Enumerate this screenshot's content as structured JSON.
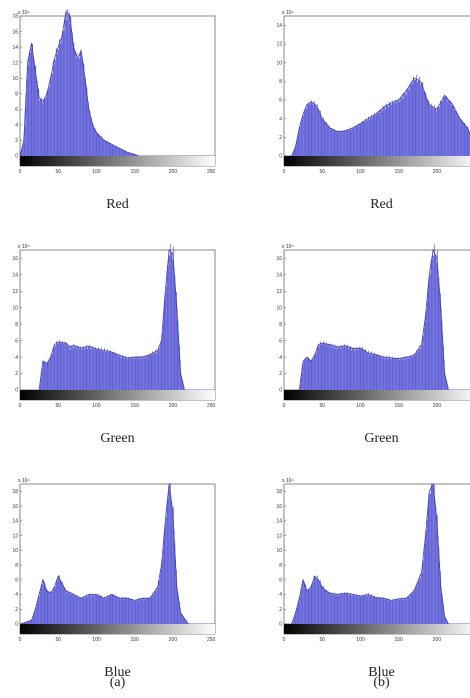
{
  "colors": {
    "bar": "#5b5bd6",
    "bar_edge": "#3c3cb0",
    "frame": "#555555"
  },
  "columns": [
    {
      "label": "(a)",
      "panels": [
        {
          "caption": "Red",
          "chart_data": {
            "type": "area",
            "ylim": [
              0,
              18
            ],
            "y_multiplier": "x 10^4",
            "y_ticks": [
              "0",
              "2",
              "4",
              "6",
              "8",
              "10",
              "12",
              "14",
              "16",
              "18"
            ],
            "x_ticks": [
              "0",
              "50",
              "100",
              "150",
              "200",
              "250"
            ],
            "xlim": [
              0,
              255
            ],
            "x": [
              0,
              5,
              10,
              15,
              20,
              25,
              30,
              35,
              40,
              45,
              50,
              55,
              60,
              65,
              70,
              75,
              80,
              85,
              90,
              95,
              100,
              110,
              120,
              130,
              140,
              150,
              155,
              160,
              255
            ],
            "y": [
              0,
              2,
              12,
              14.5,
              11,
              7.5,
              7,
              8,
              10,
              12.5,
              14,
              15.5,
              18.5,
              18,
              14,
              12.5,
              13.5,
              10,
              6,
              4,
              3,
              2,
              1.5,
              1,
              0.5,
              0.2,
              0,
              0,
              0
            ]
          }
        },
        {
          "caption": "Green",
          "chart_data": {
            "type": "area",
            "ylim": [
              0,
              17
            ],
            "y_multiplier": "x 10^4",
            "y_ticks": [
              "0",
              "2",
              "4",
              "6",
              "8",
              "10",
              "12",
              "14",
              "16"
            ],
            "x_ticks": [
              "0",
              "50",
              "100",
              "150",
              "200",
              "250"
            ],
            "xlim": [
              0,
              255
            ],
            "x": [
              0,
              25,
              30,
              35,
              40,
              45,
              50,
              60,
              65,
              70,
              80,
              90,
              100,
              110,
              120,
              130,
              140,
              150,
              160,
              170,
              180,
              185,
              190,
              195,
              200,
              205,
              210,
              215,
              255
            ],
            "y": [
              0,
              0,
              3.5,
              3.2,
              4,
              5.5,
              5.8,
              5.7,
              5.2,
              5.4,
              5.1,
              5.3,
              5.0,
              4.8,
              4.6,
              4.2,
              3.9,
              4.0,
              4.0,
              4.3,
              4.8,
              6,
              12,
              17,
              16.5,
              10,
              2,
              0,
              0
            ]
          }
        },
        {
          "caption": "Blue",
          "chart_data": {
            "type": "area",
            "ylim": [
              0,
              19
            ],
            "y_multiplier": "x 10^4",
            "y_ticks": [
              "0",
              "2",
              "4",
              "6",
              "8",
              "10",
              "12",
              "14",
              "16",
              "18"
            ],
            "x_ticks": [
              "0",
              "50",
              "100",
              "150",
              "200",
              "250"
            ],
            "xlim": [
              0,
              255
            ],
            "x": [
              0,
              15,
              20,
              25,
              30,
              35,
              40,
              45,
              50,
              55,
              60,
              70,
              80,
              90,
              100,
              110,
              120,
              130,
              140,
              150,
              160,
              170,
              180,
              185,
              190,
              195,
              200,
              205,
              210,
              220,
              255
            ],
            "y": [
              0,
              0.5,
              2,
              4,
              6,
              4.5,
              4.2,
              5,
              6.5,
              5.5,
              4.5,
              4,
              3.5,
              4,
              4,
              3.5,
              4,
              3.5,
              3.5,
              3.2,
              3.5,
              3.5,
              5,
              8,
              14,
              19,
              15,
              5,
              1.5,
              0,
              0
            ]
          }
        }
      ]
    },
    {
      "label": "(b)",
      "panels": [
        {
          "caption": "Red",
          "chart_data": {
            "type": "area",
            "ylim": [
              0,
              15
            ],
            "y_multiplier": "x 10^4",
            "y_ticks": [
              "0",
              "2",
              "4",
              "6",
              "8",
              "10",
              "12",
              "14"
            ],
            "x_ticks": [
              "0",
              "50",
              "100",
              "150",
              "200",
              "250"
            ],
            "xlim": [
              0,
              255
            ],
            "x": [
              0,
              10,
              15,
              20,
              25,
              30,
              35,
              40,
              45,
              50,
              60,
              70,
              80,
              90,
              100,
              110,
              120,
              130,
              140,
              150,
              160,
              170,
              175,
              180,
              185,
              190,
              200,
              210,
              220,
              230,
              240,
              250,
              255
            ],
            "y": [
              0,
              0,
              1,
              3,
              4.5,
              5.5,
              5.8,
              5.6,
              5,
              4,
              3,
              2.6,
              2.7,
              3,
              3.5,
              4,
              4.5,
              5.2,
              5.7,
              6,
              7,
              8.3,
              8.2,
              7.8,
              6.5,
              5.5,
              5,
              6.5,
              5.5,
              4,
              3,
              1,
              0
            ]
          }
        },
        {
          "caption": "Green",
          "chart_data": {
            "type": "area",
            "ylim": [
              0,
              17
            ],
            "y_multiplier": "x 10^4",
            "y_ticks": [
              "0",
              "2",
              "4",
              "6",
              "8",
              "10",
              "12",
              "14",
              "16"
            ],
            "x_ticks": [
              "0",
              "50",
              "100",
              "150",
              "200",
              "250"
            ],
            "xlim": [
              0,
              255
            ],
            "x": [
              0,
              20,
              25,
              30,
              35,
              40,
              45,
              50,
              55,
              60,
              70,
              80,
              90,
              100,
              110,
              120,
              130,
              140,
              150,
              160,
              170,
              180,
              185,
              190,
              195,
              200,
              205,
              210,
              215,
              255
            ],
            "y": [
              0,
              0,
              3.5,
              4,
              3.5,
              4.2,
              5.5,
              5.7,
              5.6,
              5.5,
              5.2,
              5.4,
              5.0,
              5.1,
              4.5,
              4.3,
              4.0,
              3.9,
              3.8,
              4.0,
              4.2,
              5.5,
              9,
              14,
              17,
              16,
              10,
              2,
              0,
              0
            ]
          }
        },
        {
          "caption": "Blue",
          "chart_data": {
            "type": "area",
            "ylim": [
              0,
              19
            ],
            "y_multiplier": "x 10^4",
            "y_ticks": [
              "0",
              "2",
              "4",
              "6",
              "8",
              "10",
              "12",
              "14",
              "16",
              "18"
            ],
            "x_ticks": [
              "0",
              "50",
              "100",
              "150",
              "200",
              "250"
            ],
            "xlim": [
              0,
              255
            ],
            "x": [
              0,
              10,
              15,
              20,
              25,
              30,
              35,
              40,
              45,
              50,
              55,
              60,
              70,
              80,
              90,
              100,
              110,
              120,
              130,
              140,
              150,
              160,
              170,
              180,
              185,
              190,
              195,
              200,
              205,
              210,
              215,
              255
            ],
            "y": [
              0,
              0,
              1.5,
              3.5,
              6,
              4.5,
              5,
              6.5,
              6,
              5,
              4.5,
              4.2,
              4,
              4.2,
              4,
              3.8,
              4,
              3.6,
              3.5,
              3.2,
              3.4,
              3.5,
              4.5,
              7,
              12,
              18,
              19,
              14,
              5,
              1,
              0,
              0
            ]
          }
        }
      ]
    }
  ]
}
